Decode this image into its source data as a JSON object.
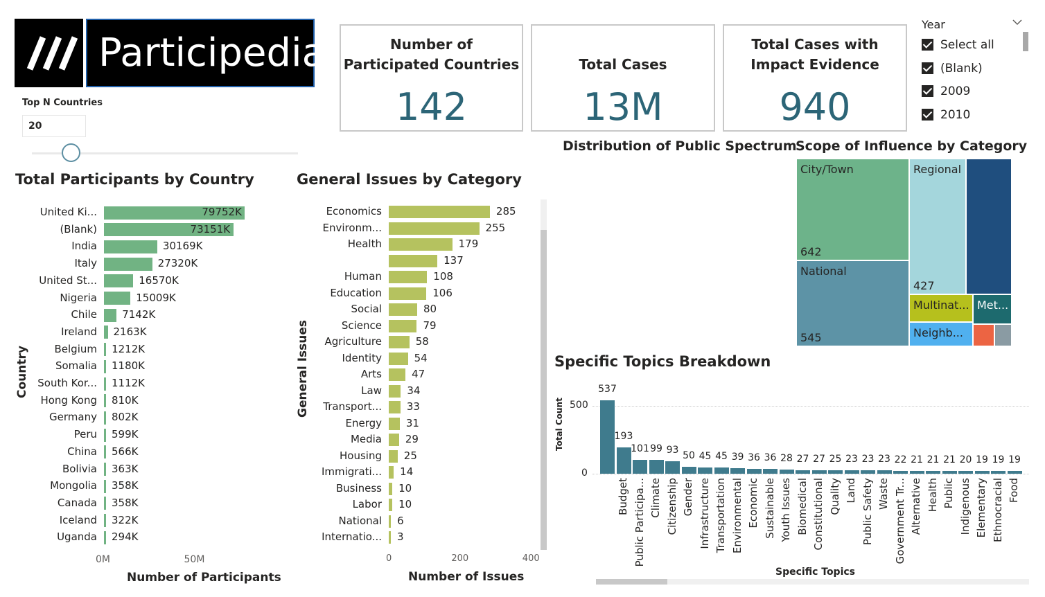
{
  "logo": {
    "mark": "///",
    "text": "Participedia"
  },
  "slicer": {
    "title": "Top N Countries",
    "value": "20"
  },
  "cards": [
    {
      "title_lines": [
        "Number of",
        "Participated Countries"
      ],
      "value": "142"
    },
    {
      "title_lines": [
        "Total Cases"
      ],
      "value": "13M"
    },
    {
      "title_lines": [
        "Total Cases with",
        "Impact Evidence"
      ],
      "value": "940"
    }
  ],
  "year_slicer": {
    "title": "Year",
    "items": [
      "Select all",
      "(Blank)",
      "2009",
      "2010"
    ]
  },
  "colors": {
    "green": "#71b383",
    "olive": "#b5c25f",
    "teal": "#3f7b8d",
    "card_value": "#2c6577"
  },
  "headings": {
    "public_spectrum": "Distribution of Public Spectrum",
    "scope": "Scope of Influence by Category",
    "specific_topics": "Specific Topics Breakdown"
  },
  "chart_data": [
    {
      "type": "bar",
      "title": "Total Participants by Country",
      "xlabel": "Number of Participants",
      "ylabel": "Country",
      "categories": [
        "United Ki...",
        "(Blank)",
        "India",
        "Italy",
        "United St...",
        "Nigeria",
        "Chile",
        "Ireland",
        "Belgium",
        "Somalia",
        "South Kor...",
        "Hong Kong",
        "Germany",
        "Peru",
        "China",
        "Bolivia",
        "Mongolia",
        "Canada",
        "Iceland",
        "Uganda"
      ],
      "values": [
        79752,
        73151,
        30169,
        27320,
        16570,
        15009,
        7142,
        2163,
        1212,
        1180,
        1112,
        810,
        802,
        599,
        566,
        363,
        358,
        358,
        322,
        294
      ],
      "value_labels": [
        "79752K",
        "73151K",
        "30169K",
        "27320K",
        "16570K",
        "15009K",
        "7142K",
        "2163K",
        "1212K",
        "1180K",
        "1112K",
        "810K",
        "802K",
        "599K",
        "566K",
        "363K",
        "358K",
        "358K",
        "322K",
        "294K"
      ],
      "x_ticks": [
        "0M",
        "50M"
      ]
    },
    {
      "type": "bar",
      "title": "General Issues by Category",
      "xlabel": "Number of Issues",
      "ylabel": "General Issues",
      "categories": [
        "Economics",
        "Environm...",
        "Health",
        "",
        "Human",
        "Education",
        "Social",
        "Science",
        "Agriculture",
        "Identity",
        "Arts",
        "Law",
        "Transport...",
        "Energy",
        "Media",
        "Housing",
        "Immigrati...",
        "Business",
        "Labor",
        "National",
        "Internatio..."
      ],
      "values": [
        285,
        255,
        179,
        137,
        108,
        106,
        80,
        79,
        58,
        54,
        47,
        34,
        33,
        31,
        29,
        25,
        14,
        10,
        10,
        6,
        3
      ],
      "x_ticks": [
        "0",
        "200",
        "400"
      ]
    },
    {
      "type": "treemap",
      "title": "Scope of Influence by Category",
      "items": [
        {
          "name": "City/Town",
          "value": "642",
          "color": "#6db38a"
        },
        {
          "name": "National",
          "value": "545",
          "color": "#5d93a6"
        },
        {
          "name": "Regional",
          "value": "427",
          "color": "#a4d6dc"
        },
        {
          "name": "",
          "value": "",
          "color": "#1f4e7e"
        },
        {
          "name": "Multinat...",
          "value": "",
          "color": "#b6c01d"
        },
        {
          "name": "Met...",
          "value": "",
          "color": "#1d6a6e"
        },
        {
          "name": "Neighb...",
          "value": "",
          "color": "#50b0ef"
        },
        {
          "name": "",
          "value": "",
          "color": "#ec6443"
        },
        {
          "name": "",
          "value": "",
          "color": "#8a9ba3"
        }
      ]
    },
    {
      "type": "bar",
      "title": "Specific Topics Breakdown",
      "xlabel": "Specific Topics",
      "ylabel": "Total Count",
      "y_ticks": [
        "0",
        "500"
      ],
      "categories": [
        "",
        "Budget",
        "Public Participa...",
        "Climate",
        "Citizenship",
        "Gender",
        "Infrastructure",
        "Transportation",
        "Environmental",
        "Economic",
        "Sustainable",
        "Youth Issues",
        "Biomedical",
        "Constitutional",
        "Quality",
        "Land",
        "Public Safety",
        "Waste",
        "Government Tr...",
        "Alternative",
        "Health",
        "Public",
        "Indigenous",
        "Elementary",
        "Ethnocracial",
        "Food"
      ],
      "values": [
        537,
        193,
        101,
        99,
        93,
        50,
        45,
        45,
        39,
        36,
        36,
        28,
        27,
        27,
        25,
        23,
        23,
        23,
        22,
        21,
        21,
        21,
        20,
        19,
        19,
        19
      ]
    }
  ]
}
